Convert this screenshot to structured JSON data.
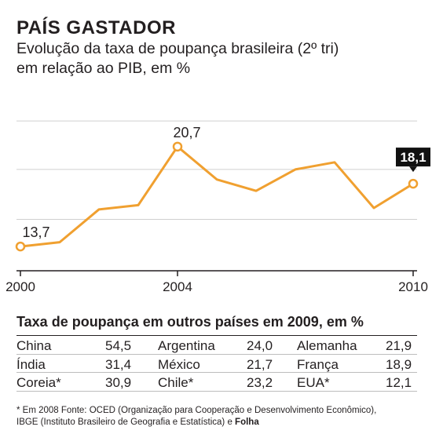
{
  "header": {
    "title": "PAÍS GASTADOR",
    "subtitle_line1": "Evolução da taxa de poupança brasileira (2º tri)",
    "subtitle_line2": "em relação ao PIB, em %"
  },
  "chart_data": {
    "type": "line",
    "x": [
      2000,
      2001,
      2002,
      2003,
      2004,
      2005,
      2006,
      2007,
      2008,
      2009,
      2010
    ],
    "series": [
      {
        "values": [
          13.7,
          14.0,
          16.3,
          16.6,
          20.7,
          18.4,
          17.6,
          19.1,
          19.6,
          16.4,
          18.1
        ]
      }
    ],
    "x_tick_labels": [
      "2000",
      "2004",
      "2010"
    ],
    "annotations": [
      {
        "x": 2000,
        "label": "13,7"
      },
      {
        "x": 2004,
        "label": "20,7"
      },
      {
        "x": 2010,
        "label": "18,1"
      }
    ],
    "ylim": [
      12,
      23
    ],
    "grid": true,
    "colors": {
      "line": "#f0a030",
      "grid": "#cfcfcf",
      "callout_bg": "#111111",
      "callout_text": "#ffffff"
    }
  },
  "table": {
    "title": "Taxa de poupança em outros países em 2009, em %",
    "rows": [
      [
        {
          "name": "China",
          "value": "54,5"
        },
        {
          "name": "Argentina",
          "value": "24,0"
        },
        {
          "name": "Alemanha",
          "value": "21,9"
        }
      ],
      [
        {
          "name": "Índia",
          "value": "31,4"
        },
        {
          "name": "México",
          "value": "21,7"
        },
        {
          "name": "França",
          "value": "18,9"
        }
      ],
      [
        {
          "name": "Coreia*",
          "value": "30,9"
        },
        {
          "name": "Chile*",
          "value": "23,2"
        },
        {
          "name": "EUA*",
          "value": "12,1"
        }
      ]
    ]
  },
  "footnote": {
    "line1": "* Em 2008   Fonte: OCED (Organização para Cooperação e Desenvolvimento Econômico),",
    "line2_prefix": "IBGE (Instituto Brasileiro de Geografia e Estatística) e ",
    "line2_bold": "Folha"
  }
}
